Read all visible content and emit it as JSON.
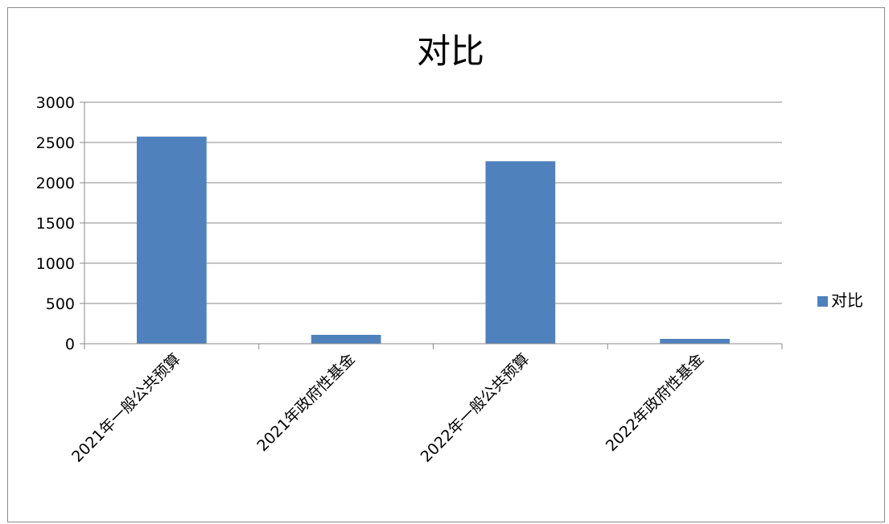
{
  "chart_data": {
    "type": "bar",
    "title": "对比",
    "categories": [
      "2021年一般公共预算",
      "2021年政府性基金",
      "2022年一般公共预算",
      "2022年政府性基金"
    ],
    "series": [
      {
        "name": "对比",
        "values": [
          2573,
          110,
          2267,
          60
        ],
        "color": "#4f81bd"
      }
    ],
    "ylim": [
      0,
      3000
    ],
    "yticks": [
      0,
      500,
      1000,
      1500,
      2000,
      2500,
      3000
    ],
    "grid": true,
    "legend_position": "right"
  }
}
